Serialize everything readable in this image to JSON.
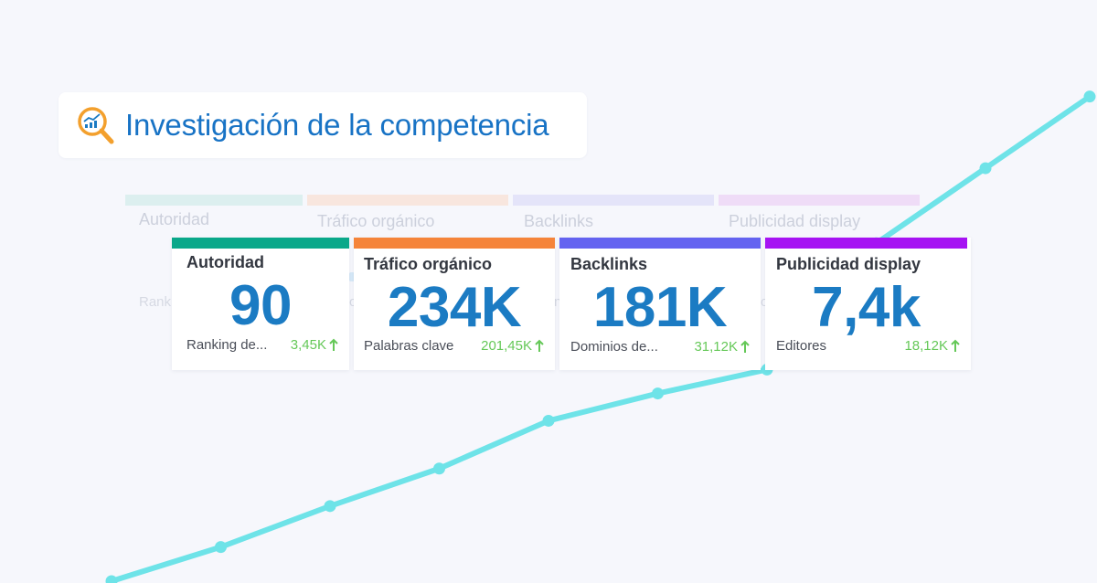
{
  "header": {
    "title": "Investigación de la competencia",
    "icon": "magnifier-chart-icon"
  },
  "colors": {
    "background": "#f6f7fc",
    "title": "#1873c5",
    "value": "#1b7bc3",
    "delta_up": "#65c858",
    "trend_line": "#6ee3e8",
    "autoridad": "#0aa88a",
    "trafico": "#f5843a",
    "backlinks": "#6463f0",
    "publicidad": "#a613f3"
  },
  "ghost_labels": [
    "Autoridad",
    "Tráfico orgánico",
    "Backlinks",
    "Publicidad display"
  ],
  "ghost_sub_fragments": [
    "Rank",
    "o",
    "ni",
    "o"
  ],
  "cards": [
    {
      "label": "Autoridad",
      "value": "90",
      "sub": "Ranking de...",
      "delta": "3,45K"
    },
    {
      "label": "Tráfico orgánico",
      "value": "234K",
      "sub": "Palabras clave",
      "delta": "201,45K"
    },
    {
      "label": "Backlinks",
      "value": "181K",
      "sub": "Dominios de...",
      "delta": "31,12K"
    },
    {
      "label": "Publicidad display",
      "value": "7,4k",
      "sub": "Editores",
      "delta": "18,12K"
    }
  ],
  "trend": {
    "trend": "increasing",
    "values": [
      0,
      1.0,
      2.2,
      3.3,
      4.7,
      5.5,
      6.2,
      9.9,
      12.1
    ]
  }
}
